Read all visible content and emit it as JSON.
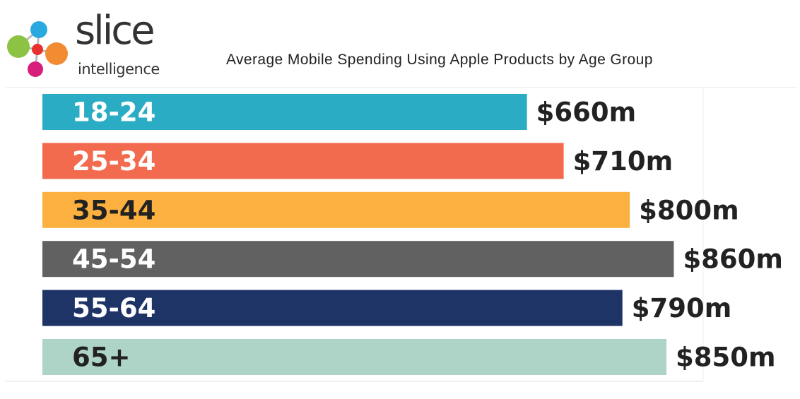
{
  "brand": {
    "name": "slice",
    "subtitle": "intelligence",
    "dot_colors": [
      "#8cc342",
      "#2aa9e0",
      "#e8312f",
      "#f28c33",
      "#d81e7b"
    ]
  },
  "chart_data": {
    "type": "bar",
    "orientation": "horizontal",
    "title": "Average Mobile Spending Using Apple Products by Age Group",
    "xlabel": "",
    "ylabel": "",
    "grid": false,
    "legend": "none",
    "xlim": [
      0,
      900
    ],
    "categories": [
      "18-24",
      "25-34",
      "35-44",
      "45-54",
      "55-64",
      "65+"
    ],
    "values": [
      660,
      710,
      800,
      860,
      790,
      850
    ],
    "value_labels": [
      "$660m",
      "$710m",
      "$800m",
      "$860m",
      "$790m",
      "$850m"
    ],
    "colors": [
      "#2aacc4",
      "#f26b4e",
      "#fbb040",
      "#616161",
      "#1e3366",
      "#aed3c7"
    ],
    "label_colors": [
      "#ffffff",
      "#ffffff",
      "#222222",
      "#ffffff",
      "#ffffff",
      "#222222"
    ]
  }
}
